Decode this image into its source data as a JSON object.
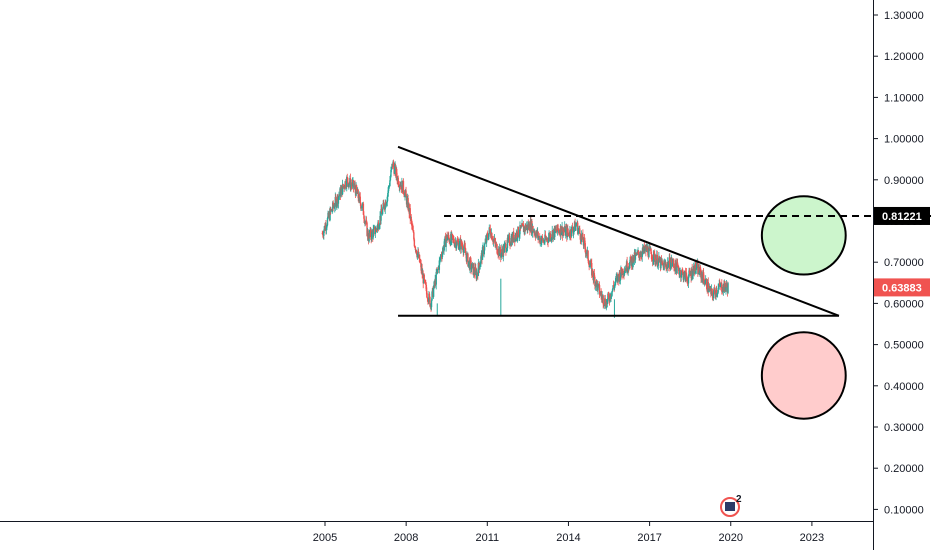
{
  "chart_data": {
    "type": "candlestick",
    "x_axis": {
      "ticks": [
        "2005",
        "2008",
        "2011",
        "2014",
        "2017",
        "2020",
        "2023"
      ],
      "tick_values": [
        2005,
        2008,
        2011,
        2014,
        2017,
        2020,
        2023
      ]
    },
    "y_axis": {
      "ticks": [
        "1.30000",
        "1.20000",
        "1.10000",
        "1.00000",
        "0.90000",
        "0.80000",
        "0.70000",
        "0.60000",
        "0.50000",
        "0.40000",
        "0.30000",
        "0.20000",
        "0.10000"
      ],
      "tick_values": [
        1.3,
        1.2,
        1.1,
        1.0,
        0.9,
        0.8,
        0.7,
        0.6,
        0.5,
        0.4,
        0.3,
        0.2,
        0.1
      ],
      "range": [
        0.075,
        1.335
      ],
      "position": "right"
    },
    "series": [
      {
        "style": "candles",
        "x": [
          2004.9,
          2005.2,
          2005.5,
          2005.8,
          2006.1,
          2006.4,
          2006.6,
          2006.9,
          2007.1,
          2007.3,
          2007.5,
          2007.7,
          2007.9,
          2008.1,
          2008.3,
          2008.5,
          2008.7,
          2008.9,
          2009.1,
          2009.3,
          2009.5,
          2009.8,
          2010.1,
          2010.3,
          2010.6,
          2010.9,
          2011.1,
          2011.3,
          2011.5,
          2011.8,
          2012.1,
          2012.3,
          2012.6,
          2012.9,
          2013.1,
          2013.4,
          2013.7,
          2014.0,
          2014.3,
          2014.6,
          2014.9,
          2015.2,
          2015.4,
          2015.6,
          2015.8,
          2016.0,
          2016.3,
          2016.6,
          2016.9,
          2017.2,
          2017.5,
          2017.8,
          2018.1,
          2018.4,
          2018.7,
          2019.0,
          2019.3,
          2019.6,
          2019.9
        ],
        "y": [
          0.77,
          0.82,
          0.86,
          0.9,
          0.88,
          0.83,
          0.76,
          0.78,
          0.82,
          0.86,
          0.94,
          0.9,
          0.88,
          0.83,
          0.75,
          0.7,
          0.64,
          0.6,
          0.66,
          0.72,
          0.76,
          0.75,
          0.74,
          0.7,
          0.67,
          0.74,
          0.78,
          0.74,
          0.72,
          0.75,
          0.77,
          0.78,
          0.79,
          0.76,
          0.75,
          0.77,
          0.78,
          0.77,
          0.79,
          0.74,
          0.67,
          0.62,
          0.6,
          0.63,
          0.66,
          0.68,
          0.7,
          0.72,
          0.73,
          0.71,
          0.69,
          0.7,
          0.68,
          0.66,
          0.69,
          0.66,
          0.62,
          0.64,
          0.639
        ]
      }
    ],
    "trendlines": [
      {
        "name": "descending-resistance",
        "x": [
          2007.7,
          2024.0
        ],
        "y": [
          0.98,
          0.57
        ],
        "style": "solid"
      },
      {
        "name": "horizontal-support",
        "x": [
          2007.7,
          2024.0
        ],
        "y": [
          0.57,
          0.57
        ],
        "style": "solid"
      },
      {
        "name": "target-level",
        "x": [
          2009.4,
          2028.0
        ],
        "y": [
          0.81221,
          0.81221
        ],
        "style": "dashed"
      }
    ],
    "ellipses": [
      {
        "name": "bullish-zone",
        "cx": 2022.7,
        "cy": 0.765,
        "rx_years": 1.55,
        "ry": 0.095,
        "fill": "#ccf5cc"
      },
      {
        "name": "bearish-zone",
        "cx": 2022.7,
        "cy": 0.425,
        "rx_years": 1.55,
        "ry": 0.105,
        "fill": "#ffcccc"
      }
    ],
    "price_labels": [
      {
        "text": "0.81221",
        "value": 0.81221,
        "bg": "#000000",
        "fg": "#ffffff"
      },
      {
        "text": "0.63883",
        "value": 0.63883,
        "bg": "#f05350",
        "fg": "#ffffff"
      }
    ],
    "colors": {
      "up": "#26a69a",
      "down": "#ef5350",
      "axis": "#131722",
      "background": "#ffffff"
    },
    "grid": false
  },
  "event_badge": {
    "count": "2"
  }
}
